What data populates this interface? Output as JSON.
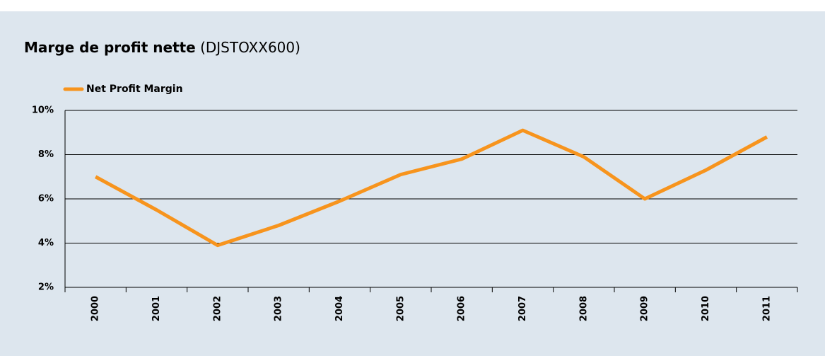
{
  "chart_data": {
    "type": "line",
    "title": "Marge de profit nette",
    "subtitle": "(DJSTOXX600)",
    "categories": [
      "2000",
      "2001",
      "2002",
      "2003",
      "2004",
      "2005",
      "2006",
      "2007",
      "2008",
      "2009",
      "2010",
      "2011"
    ],
    "series": [
      {
        "name": "Net Profit Margin",
        "color": "#f7941d",
        "values": [
          7.0,
          5.5,
          3.9,
          4.8,
          5.9,
          7.1,
          7.8,
          9.1,
          7.9,
          6.0,
          7.3,
          8.8
        ]
      }
    ],
    "ylim": [
      2,
      10
    ],
    "yticks": [
      {
        "value": 2,
        "label": "2%"
      },
      {
        "value": 4,
        "label": "4%"
      },
      {
        "value": 6,
        "label": "6%"
      },
      {
        "value": 8,
        "label": "8%"
      },
      {
        "value": 10,
        "label": "10%"
      }
    ],
    "grid": true,
    "legend": "top-left"
  }
}
